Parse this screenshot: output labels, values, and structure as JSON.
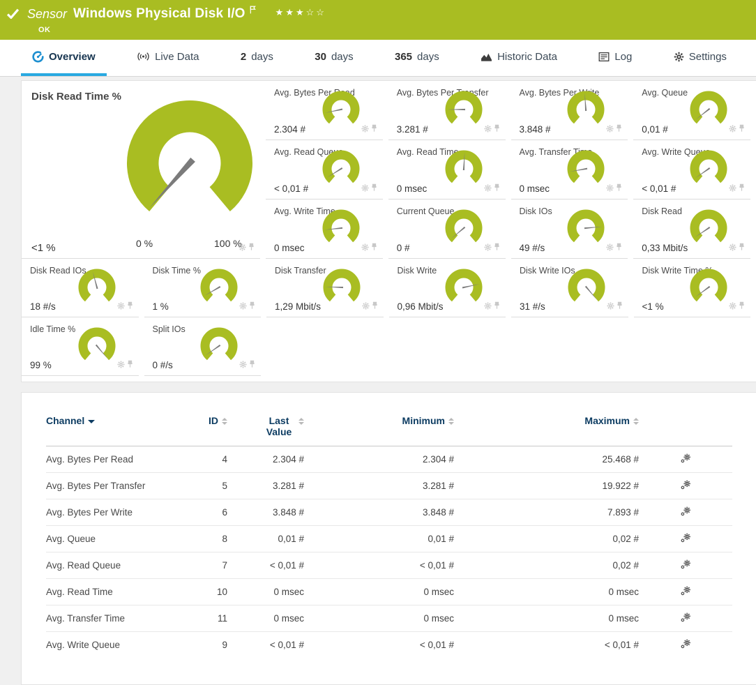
{
  "header": {
    "kind": "Sensor",
    "title": "Windows Physical Disk I/O",
    "status": "OK",
    "rating": {
      "filled": 3,
      "total": 5
    },
    "check_icon": "check-icon",
    "flag_icon": "flag-icon"
  },
  "tabs": {
    "items": [
      {
        "label": "Overview",
        "icon": "gauge-icon",
        "active": true
      },
      {
        "label": "Live Data",
        "icon": "broadcast-icon",
        "active": false
      },
      {
        "num": "2",
        "label": "days",
        "active": false
      },
      {
        "num": "30",
        "label": "days",
        "active": false
      },
      {
        "num": "365",
        "label": "days",
        "active": false
      },
      {
        "label": "Historic Data",
        "icon": "chart-icon",
        "active": false
      },
      {
        "label": "Log",
        "icon": "log-icon",
        "active": false
      },
      {
        "label": "Settings",
        "icon": "gear-icon",
        "active": false
      }
    ]
  },
  "gauges": {
    "featured": {
      "label": "Disk Read Time %",
      "value": "<1 %",
      "scale_min": "0 %",
      "scale_max": "100 %",
      "needle_deg": -138
    },
    "grid_top": [
      {
        "label": "Avg. Bytes Per Read",
        "value": "2.304 #",
        "needle_deg": -102
      },
      {
        "label": "Avg. Bytes Per Transfer",
        "value": "3.281 #",
        "needle_deg": -90
      },
      {
        "label": "Avg. Bytes Per Write",
        "value": "3.848 #",
        "needle_deg": -4
      },
      {
        "label": "Avg. Queue",
        "value": "0,01 #",
        "needle_deg": -128
      },
      {
        "label": "Avg. Read Queue",
        "value": "< 0,01 #",
        "needle_deg": -122
      },
      {
        "label": "Avg. Read Time",
        "value": "0 msec",
        "needle_deg": 3
      },
      {
        "label": "Avg. Transfer Time",
        "value": "0 msec",
        "needle_deg": -100
      },
      {
        "label": "Avg. Write Queue",
        "value": "< 0,01 #",
        "needle_deg": -125
      },
      {
        "label": "Avg. Write Time",
        "value": "0 msec",
        "needle_deg": -96
      },
      {
        "label": "Current Queue",
        "value": "0 #",
        "needle_deg": -130
      },
      {
        "label": "Disk IOs",
        "value": "49 #/s",
        "needle_deg": 85
      },
      {
        "label": "Disk Read",
        "value": "0,33 Mbit/s",
        "needle_deg": -124
      }
    ],
    "grid_row4": [
      {
        "label": "Disk Read IOs",
        "value": "18 #/s",
        "needle_deg": -15
      },
      {
        "label": "Disk Time %",
        "value": "1 %",
        "needle_deg": -120
      },
      {
        "label": "Disk Transfer",
        "value": "1,29 Mbit/s",
        "needle_deg": -88
      },
      {
        "label": "Disk Write",
        "value": "0,96 Mbit/s",
        "needle_deg": 78
      },
      {
        "label": "Disk Write IOs",
        "value": "31 #/s",
        "needle_deg": 140
      },
      {
        "label": "Disk Write Time %",
        "value": "<1 %",
        "needle_deg": -126
      }
    ],
    "grid_row5": [
      {
        "label": "Idle Time %",
        "value": "99 %",
        "needle_deg": 140
      },
      {
        "label": "Split IOs",
        "value": "0 #/s",
        "needle_deg": -125
      }
    ],
    "cell_icons": [
      "gear-small-icon",
      "pin-icon"
    ]
  },
  "table": {
    "columns": [
      {
        "label": "Channel",
        "sort": "desc"
      },
      {
        "label": "ID",
        "sort": "both"
      },
      {
        "label": "Last Value",
        "sort": "both"
      },
      {
        "label": "Minimum",
        "sort": "both"
      },
      {
        "label": "Maximum",
        "sort": "both"
      }
    ],
    "row_action_icon": "channel-settings-icon",
    "rows": [
      {
        "channel": "Avg. Bytes Per Read",
        "id": "4",
        "last": "2.304 #",
        "min": "2.304 #",
        "max": "25.468 #"
      },
      {
        "channel": "Avg. Bytes Per Transfer",
        "id": "5",
        "last": "3.281 #",
        "min": "3.281 #",
        "max": "19.922 #"
      },
      {
        "channel": "Avg. Bytes Per Write",
        "id": "6",
        "last": "3.848 #",
        "min": "3.848 #",
        "max": "7.893 #"
      },
      {
        "channel": "Avg. Queue",
        "id": "8",
        "last": "0,01 #",
        "min": "0,01 #",
        "max": "0,02 #"
      },
      {
        "channel": "Avg. Read Queue",
        "id": "7",
        "last": "< 0,01 #",
        "min": "< 0,01 #",
        "max": "0,02 #"
      },
      {
        "channel": "Avg. Read Time",
        "id": "10",
        "last": "0 msec",
        "min": "0 msec",
        "max": "0 msec"
      },
      {
        "channel": "Avg. Transfer Time",
        "id": "11",
        "last": "0 msec",
        "min": "0 msec",
        "max": "0 msec"
      },
      {
        "channel": "Avg. Write Queue",
        "id": "9",
        "last": "< 0,01 #",
        "min": "< 0,01 #",
        "max": "< 0,01 #"
      }
    ]
  },
  "colors": {
    "brand_green": "#a9bd22",
    "accent_blue": "#29a9e1",
    "table_header_blue": "#0d3c62",
    "needle_gray": "#7b7b7b",
    "icon_gray": "#c8c8c8"
  }
}
